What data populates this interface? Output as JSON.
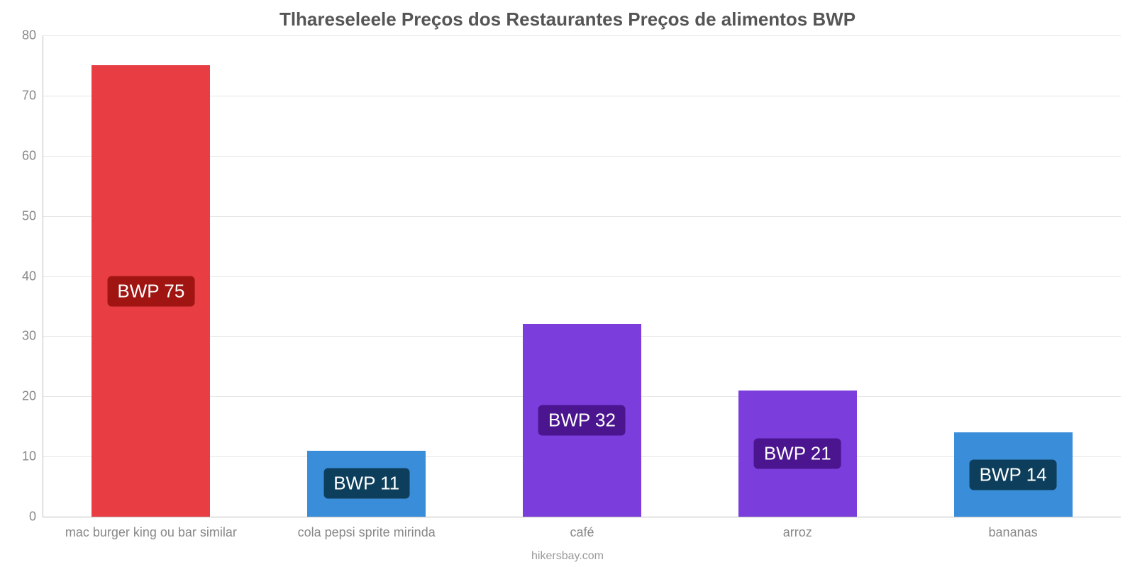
{
  "chart": {
    "type": "bar",
    "title": "Tlhareseleele Preços dos Restaurantes Preços de alimentos BWP",
    "title_fontsize": 26,
    "title_color": "#555555",
    "background_color": "#ffffff",
    "grid_color": "#e6e6e6",
    "axis_color": "#bdbdbd",
    "ylim": [
      0,
      80
    ],
    "ytick_step": 10,
    "yticks": [
      0,
      10,
      20,
      30,
      40,
      50,
      60,
      70,
      80
    ],
    "label_fontsize": 18,
    "tick_color": "#888888",
    "bar_width": 0.55,
    "data_label_fontsize": 26,
    "categories": [
      "mac burger king ou bar similar",
      "cola pepsi sprite mirinda",
      "café",
      "arroz",
      "bananas"
    ],
    "values": [
      75,
      11,
      32,
      21,
      14
    ],
    "bar_colors": [
      "#e73d43",
      "#3a8dd8",
      "#7b3ddb",
      "#7b3ddb",
      "#3a8dd8"
    ],
    "data_labels": [
      "BWP 75",
      "BWP 11",
      "BWP 32",
      "BWP 21",
      "BWP 14"
    ],
    "data_label_bg": [
      "#a01512",
      "#0d3f5c",
      "#4b158f",
      "#4b158f",
      "#0d3f5c"
    ],
    "data_label_color": "#ffffff",
    "credit": "hikersbay.com",
    "credit_fontsize": 16,
    "credit_color": "#9a9a9a"
  }
}
